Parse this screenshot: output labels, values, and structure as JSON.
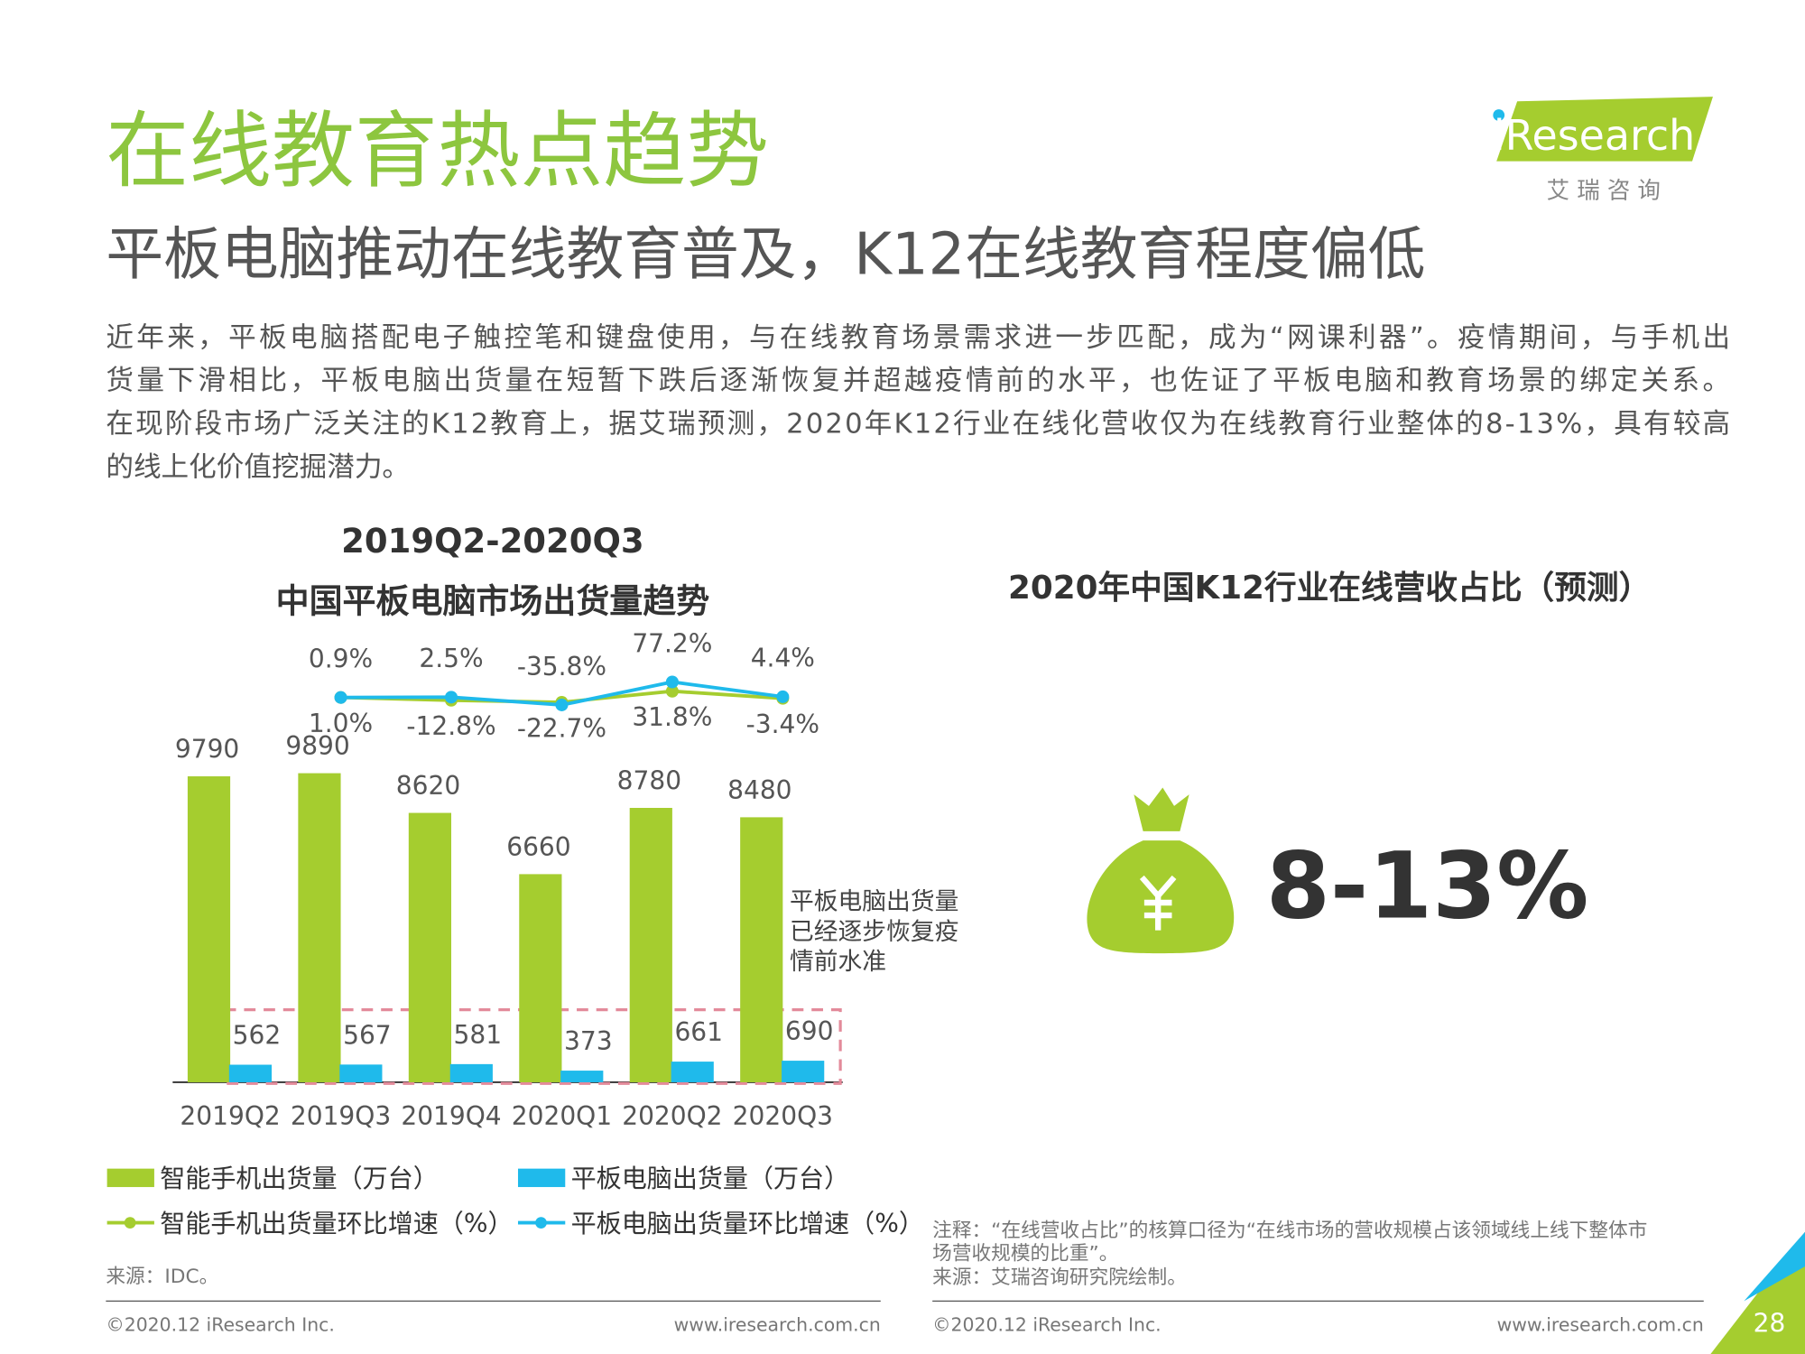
{
  "header": {
    "title": "在线教育热点趋势",
    "subtitle": "平板电脑推动在线教育普及，K12在线教育程度偏低",
    "logo": "iResearch",
    "logo_sub": "艾 瑞 咨 询"
  },
  "paragraph": [
    "近年来，平板电脑搭配电子触控笔和键盘使用，与在线教育场景需求进一步匹配，成为“网课利器”。疫情期间，与手机出",
    "货量下滑相比，平板电脑出货量在短暂下跌后逐渐恢复并超越疫情前的水平，也佐证了平板电脑和教育场景的绑定关系。",
    "在现阶段市场广泛关注的K12教育上，据艾瑞预测，2020年K12行业在线化营收仅为在线教育行业整体的8-13%，具有较高",
    "的线上化价值挖掘潜力。"
  ],
  "chart_data": {
    "type": "bar",
    "title": [
      "2019Q2-2020Q3",
      "中国平板电脑市场出货量趋势"
    ],
    "categories": [
      "2019Q2",
      "2019Q3",
      "2019Q4",
      "2020Q1",
      "2020Q2",
      "2020Q3"
    ],
    "series": [
      {
        "name": "智能手机出货量（万台）",
        "type": "bar",
        "color": "#a5cd2f",
        "values": [
          9790,
          9890,
          8620,
          6660,
          8780,
          8480
        ]
      },
      {
        "name": "平板电脑出货量（万台）",
        "type": "bar",
        "color": "#1fbaeb",
        "values": [
          562,
          567,
          581,
          373,
          661,
          690
        ]
      },
      {
        "name": "智能手机出货量环比增速（%）",
        "type": "line",
        "axis": "y2",
        "color": "#a5cd2f",
        "values": [
          null,
          1.0,
          -12.8,
          -22.7,
          31.8,
          -3.4
        ],
        "value_labels": [
          null,
          "1.0%",
          "-12.8%",
          "-22.7%",
          "31.8%",
          "-3.4%"
        ]
      },
      {
        "name": "平板电脑出货量环比增速（%）",
        "type": "line",
        "axis": "y2",
        "color": "#1fbaeb",
        "values": [
          null,
          0.9,
          2.5,
          -35.8,
          77.2,
          4.4
        ],
        "value_labels": [
          null,
          "0.9%",
          "2.5%",
          "-35.8%",
          "77.2%",
          "4.4%"
        ]
      }
    ],
    "ylim": [
      0,
      14000
    ],
    "y2lim": [
      -1890,
      260
    ],
    "annotation": [
      "平板电脑出货量",
      "已经逐步恢复疫",
      "情前水准"
    ],
    "source": "来源：IDC。"
  },
  "stat": {
    "title": "2020年中国K12行业在线营收占比（预测）",
    "value": "8-13%",
    "note": [
      "注释：“在线营收占比”的核算口径为“在线市场的营收规模占该领域线上线下整体市",
      "场营收规模的比重”。"
    ],
    "source": "来源：艾瑞咨询研究院绘制。"
  },
  "footer": [
    {
      "copyright": "©2020.12 iResearch Inc.",
      "url": "www.iresearch.com.cn"
    },
    {
      "copyright": "©2020.12 iResearch Inc.",
      "url": "www.iresearch.com.cn"
    }
  ],
  "page_number": 28
}
